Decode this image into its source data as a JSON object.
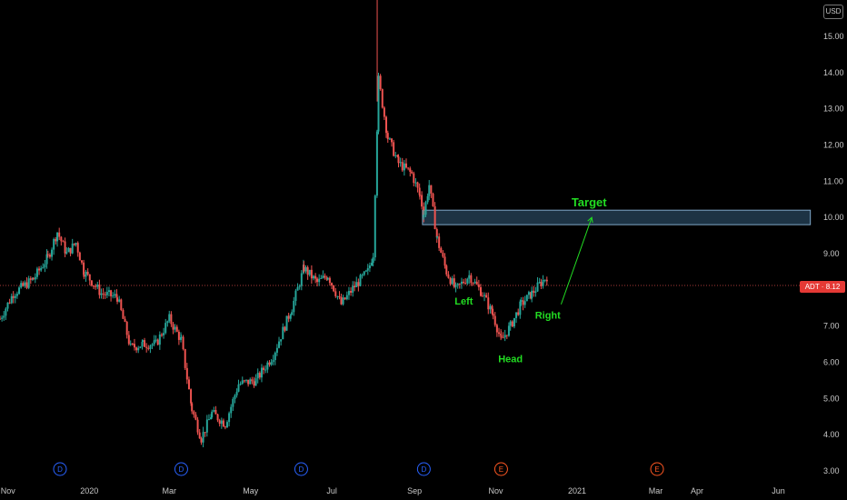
{
  "currency": "USD",
  "price_tag": {
    "symbol": "ADT",
    "value": "8.12",
    "color": "#e53935"
  },
  "colors": {
    "up": "#26a69a",
    "down": "#ef5350",
    "annotation": "#22dd22",
    "target_zone": "#7fa8c8",
    "event_dividend": "#2962ff",
    "event_earnings": "#ff5722"
  },
  "chart_data": {
    "type": "candlestick",
    "title": "",
    "ylim": [
      3.0,
      15.5
    ],
    "y_ticks": [
      "3.00",
      "4.00",
      "5.00",
      "6.00",
      "7.00",
      "8.00",
      "9.00",
      "10.00",
      "11.00",
      "12.00",
      "13.00",
      "14.00",
      "15.00"
    ],
    "x_ticks": [
      "Nov",
      "2020",
      "Mar",
      "May",
      "Jul",
      "Sep",
      "Nov",
      "2021",
      "Mar",
      "Apr",
      "Jun"
    ],
    "current_price": 8.12,
    "price_path": [
      [
        "2019-10-26",
        7.2
      ],
      [
        "2019-11-05",
        7.9
      ],
      [
        "2019-11-20",
        8.3
      ],
      [
        "2019-12-01",
        8.9
      ],
      [
        "2019-12-08",
        9.6
      ],
      [
        "2019-12-15",
        9.0
      ],
      [
        "2019-12-22",
        9.3
      ],
      [
        "2019-12-28",
        8.5
      ],
      [
        "2020-01-10",
        7.9
      ],
      [
        "2020-01-22",
        7.8
      ],
      [
        "2020-02-01",
        6.4
      ],
      [
        "2020-02-10",
        6.5
      ],
      [
        "2020-02-20",
        6.5
      ],
      [
        "2020-03-01",
        7.2
      ],
      [
        "2020-03-10",
        6.6
      ],
      [
        "2020-03-18",
        4.7
      ],
      [
        "2020-03-25",
        3.9
      ],
      [
        "2020-04-02",
        4.6
      ],
      [
        "2020-04-12",
        4.3
      ],
      [
        "2020-04-22",
        5.4
      ],
      [
        "2020-05-05",
        5.5
      ],
      [
        "2020-05-18",
        6.2
      ],
      [
        "2020-06-01",
        7.5
      ],
      [
        "2020-06-10",
        8.6
      ],
      [
        "2020-06-20",
        8.2
      ],
      [
        "2020-06-28",
        8.4
      ],
      [
        "2020-07-08",
        7.6
      ],
      [
        "2020-07-18",
        8.1
      ],
      [
        "2020-07-28",
        8.5
      ],
      [
        "2020-08-01",
        9.0
      ],
      [
        "2020-08-05",
        13.8
      ],
      [
        "2020-08-12",
        12.2
      ],
      [
        "2020-08-20",
        11.5
      ],
      [
        "2020-08-30",
        11.2
      ],
      [
        "2020-09-05",
        10.6
      ],
      [
        "2020-09-08",
        10.1
      ],
      [
        "2020-09-12",
        10.9
      ],
      [
        "2020-09-18",
        9.4
      ],
      [
        "2020-09-25",
        8.5
      ],
      [
        "2020-10-02",
        8.0
      ],
      [
        "2020-10-12",
        8.4
      ],
      [
        "2020-10-22",
        7.9
      ],
      [
        "2020-10-30",
        7.3
      ],
      [
        "2020-11-05",
        6.6
      ],
      [
        "2020-11-12",
        7.0
      ],
      [
        "2020-11-20",
        7.6
      ],
      [
        "2020-11-28",
        7.9
      ],
      [
        "2020-12-05",
        8.2
      ],
      [
        "2020-12-10",
        8.4
      ]
    ],
    "annotations": [
      {
        "label": "Target",
        "x": "2021-01-10",
        "y": 10.3
      },
      {
        "label": "Left",
        "x": "2020-10-08",
        "y": 7.6
      },
      {
        "label": "Head",
        "x": "2020-11-12",
        "y": 6.0
      },
      {
        "label": "Right",
        "x": "2020-12-10",
        "y": 7.2
      }
    ],
    "target_zone": {
      "x_start": "2020-09-07",
      "x_end": "2021-06-25",
      "y_low": 9.8,
      "y_high": 10.2
    },
    "arrow": {
      "from": [
        "2020-12-20",
        7.6
      ],
      "to": [
        "2021-01-12",
        10.0
      ]
    },
    "events": [
      {
        "label": "D",
        "date": "2019-12-10",
        "kind": "dividend"
      },
      {
        "label": "D",
        "date": "2020-03-10",
        "kind": "dividend"
      },
      {
        "label": "D",
        "date": "2020-06-08",
        "kind": "dividend"
      },
      {
        "label": "D",
        "date": "2020-09-08",
        "kind": "dividend"
      },
      {
        "label": "E",
        "date": "2020-11-05",
        "kind": "earnings"
      },
      {
        "label": "E",
        "date": "2021-03-02",
        "kind": "earnings"
      }
    ]
  }
}
